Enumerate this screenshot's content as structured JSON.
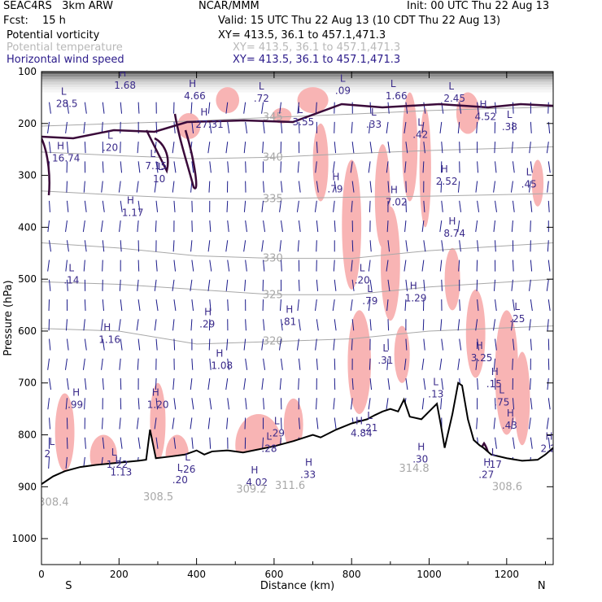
{
  "header": {
    "model": "SEAC4RS   3km ARW",
    "org": "NCAR/MMM",
    "init": "Init: 00 UTC Thu 22 Aug 13",
    "fcst_label": "Fcst:",
    "fcst_value": "15 h",
    "valid": "Valid: 15 UTC Thu 22 Aug 13 (10 CDT Thu 22 Aug 13)"
  },
  "fields": [
    {
      "name": "Potential vorticity",
      "xy": "XY= 413.5, 36.1 to 457.1,471.3",
      "color": "#2a0a4a"
    },
    {
      "name": "Potential temperature",
      "xy": "XY= 413.5, 36.1 to 457.1,471.3",
      "color": "#b0b0b0"
    },
    {
      "name": "Horizontal wind speed",
      "xy": "XY= 413.5, 36.1 to 457.1,471.3",
      "color": "#2a1a8a"
    }
  ],
  "colors": {
    "pv_contour": "#3a0a3a",
    "theta": "#a8a8a8",
    "wind_label": "#3a2a8a",
    "vectors": "#1a1a8a",
    "shading": "#f8b4b4",
    "terrain": "#000000"
  },
  "chart_data": {
    "type": "cross-section",
    "xlabel": "Distance (km)",
    "ylabel": "Pressure (hPa)",
    "xlim": [
      0,
      1320
    ],
    "ylim": [
      1050,
      100
    ],
    "xticks": [
      "0",
      "200",
      "400",
      "600",
      "800",
      "1000",
      "1200"
    ],
    "yticks": [
      "100",
      "200",
      "300",
      "400",
      "500",
      "600",
      "700",
      "800",
      "900",
      "1000"
    ],
    "end_labels": {
      "left": "S",
      "right": "N"
    },
    "terrain_surface": [
      [
        0,
        895
      ],
      [
        30,
        880
      ],
      [
        60,
        870
      ],
      [
        100,
        862
      ],
      [
        140,
        858
      ],
      [
        180,
        855
      ],
      [
        220,
        852
      ],
      [
        250,
        850
      ],
      [
        270,
        848
      ],
      [
        280,
        790
      ],
      [
        295,
        845
      ],
      [
        330,
        842
      ],
      [
        370,
        838
      ],
      [
        400,
        830
      ],
      [
        420,
        838
      ],
      [
        440,
        832
      ],
      [
        480,
        830
      ],
      [
        520,
        834
      ],
      [
        560,
        828
      ],
      [
        600,
        822
      ],
      [
        650,
        812
      ],
      [
        700,
        800
      ],
      [
        720,
        805
      ],
      [
        760,
        790
      ],
      [
        800,
        778
      ],
      [
        840,
        770
      ],
      [
        860,
        762
      ],
      [
        880,
        755
      ],
      [
        900,
        750
      ],
      [
        920,
        755
      ],
      [
        935,
        732
      ],
      [
        950,
        765
      ],
      [
        980,
        770
      ],
      [
        1000,
        755
      ],
      [
        1020,
        740
      ],
      [
        1030,
        780
      ],
      [
        1040,
        825
      ],
      [
        1060,
        760
      ],
      [
        1075,
        700
      ],
      [
        1085,
        705
      ],
      [
        1100,
        770
      ],
      [
        1115,
        810
      ],
      [
        1130,
        820
      ],
      [
        1140,
        825
      ],
      [
        1160,
        838
      ],
      [
        1200,
        845
      ],
      [
        1240,
        850
      ],
      [
        1280,
        848
      ],
      [
        1300,
        838
      ],
      [
        1320,
        825
      ]
    ],
    "theta_lines": [
      {
        "label": "345",
        "points": [
          [
            0,
            205
          ],
          [
            200,
            200
          ],
          [
            400,
            195
          ],
          [
            600,
            188
          ],
          [
            800,
            182
          ],
          [
            1000,
            175
          ],
          [
            1320,
            168
          ]
        ]
      },
      {
        "label": "340",
        "points": [
          [
            0,
            255
          ],
          [
            200,
            262
          ],
          [
            400,
            268
          ],
          [
            600,
            265
          ],
          [
            800,
            258
          ],
          [
            1000,
            252
          ],
          [
            1320,
            245
          ]
        ]
      },
      {
        "label": "335",
        "points": [
          [
            0,
            330
          ],
          [
            200,
            338
          ],
          [
            400,
            345
          ],
          [
            600,
            345
          ],
          [
            800,
            342
          ],
          [
            1000,
            340
          ],
          [
            1320,
            335
          ]
        ]
      },
      {
        "label": "330",
        "points": [
          [
            0,
            430
          ],
          [
            200,
            440
          ],
          [
            400,
            455
          ],
          [
            600,
            460
          ],
          [
            800,
            460
          ],
          [
            1000,
            445
          ],
          [
            1320,
            430
          ]
        ]
      },
      {
        "label": "325",
        "points": [
          [
            0,
            505
          ],
          [
            200,
            510
          ],
          [
            400,
            520
          ],
          [
            600,
            530
          ],
          [
            800,
            530
          ],
          [
            1000,
            515
          ],
          [
            1320,
            500
          ]
        ]
      },
      {
        "label": "320",
        "points": [
          [
            0,
            595
          ],
          [
            200,
            600
          ],
          [
            400,
            625
          ],
          [
            600,
            620
          ],
          [
            800,
            615
          ],
          [
            1000,
            600
          ],
          [
            1320,
            590
          ]
        ]
      }
    ],
    "wind_labels": [
      {
        "type": "L",
        "value": "28.5",
        "x": 50,
        "p": 165
      },
      {
        "type": "H",
        "value": "1.68",
        "x": 200,
        "p": 130
      },
      {
        "type": "H",
        "value": "4.66",
        "x": 380,
        "p": 150
      },
      {
        "type": "H",
        "value": "27.31",
        "x": 410,
        "p": 205
      },
      {
        "type": "L",
        "value": ".72",
        "x": 560,
        "p": 155
      },
      {
        "type": "L",
        "value": ".09",
        "x": 770,
        "p": 140
      },
      {
        "type": "L",
        "value": "1.66",
        "x": 900,
        "p": 150
      },
      {
        "type": "L",
        "value": "2.45",
        "x": 1050,
        "p": 155
      },
      {
        "type": "H",
        "value": "4.52",
        "x": 1130,
        "p": 190
      },
      {
        "type": "L",
        "value": ".38",
        "x": 1200,
        "p": 210
      },
      {
        "type": "L",
        "value": "3.55",
        "x": 660,
        "p": 200
      },
      {
        "type": "L",
        "value": ".33",
        "x": 850,
        "p": 205
      },
      {
        "type": "L",
        "value": ".42",
        "x": 970,
        "p": 225
      },
      {
        "type": "H",
        "value": "16.74",
        "x": 40,
        "p": 270
      },
      {
        "type": "L",
        "value": ".20",
        "x": 170,
        "p": 250
      },
      {
        "type": "L",
        "value": "7.15",
        "x": 280,
        "p": 285
      },
      {
        "type": "L",
        "value": "10",
        "x": 300,
        "p": 310
      },
      {
        "type": "H",
        "value": "2.52",
        "x": 1030,
        "p": 315
      },
      {
        "type": "L",
        "value": ".45",
        "x": 1250,
        "p": 320
      },
      {
        "type": "H",
        "value": ".79",
        "x": 750,
        "p": 330
      },
      {
        "type": "H",
        "value": "7.02",
        "x": 900,
        "p": 355
      },
      {
        "type": "H",
        "value": "1.17",
        "x": 220,
        "p": 375
      },
      {
        "type": "H",
        "value": "8.74",
        "x": 1050,
        "p": 415
      },
      {
        "type": "L",
        "value": ".14",
        "x": 70,
        "p": 505
      },
      {
        "type": "L",
        "value": ".20",
        "x": 820,
        "p": 505
      },
      {
        "type": "L",
        "value": ".79",
        "x": 840,
        "p": 545
      },
      {
        "type": "H",
        "value": "1.29",
        "x": 950,
        "p": 540
      },
      {
        "type": "H",
        "value": ".81",
        "x": 630,
        "p": 585
      },
      {
        "type": "H",
        "value": ".29",
        "x": 420,
        "p": 590
      },
      {
        "type": "L",
        "value": ".25",
        "x": 1220,
        "p": 580
      },
      {
        "type": "H",
        "value": "1.16",
        "x": 160,
        "p": 620
      },
      {
        "type": "H",
        "value": "3.25",
        "x": 1120,
        "p": 655
      },
      {
        "type": "H",
        "value": "1.08",
        "x": 450,
        "p": 670
      },
      {
        "type": "L",
        "value": ".31",
        "x": 880,
        "p": 660
      },
      {
        "type": "L",
        "value": ".13",
        "x": 1010,
        "p": 725
      },
      {
        "type": "H",
        "value": ".15",
        "x": 1160,
        "p": 705
      },
      {
        "type": "L",
        "value": ".75",
        "x": 1180,
        "p": 740
      },
      {
        "type": "H",
        "value": ".99",
        "x": 80,
        "p": 745
      },
      {
        "type": "H",
        "value": "1.20",
        "x": 285,
        "p": 745
      },
      {
        "type": "L",
        "value": ".29",
        "x": 600,
        "p": 800
      },
      {
        "type": "H",
        "value": ".43",
        "x": 1200,
        "p": 785
      },
      {
        "type": "H",
        "value": "4.84",
        "x": 810,
        "p": 800
      },
      {
        "type": "L",
        "value": ".21",
        "x": 840,
        "p": 790
      },
      {
        "type": "L",
        "value": ".28",
        "x": 580,
        "p": 830
      },
      {
        "type": "H",
        "value": "2.2",
        "x": 1300,
        "p": 830
      },
      {
        "type": "L",
        "value": "2",
        "x": 20,
        "p": 840
      },
      {
        "type": "L",
        "value": "1.22",
        "x": 180,
        "p": 860
      },
      {
        "type": "L",
        "value": "1.13",
        "x": 190,
        "p": 875
      },
      {
        "type": "L",
        "value": ".26",
        "x": 370,
        "p": 870
      },
      {
        "type": "L",
        "value": ".20",
        "x": 350,
        "p": 890
      },
      {
        "type": "H",
        "value": ".33",
        "x": 680,
        "p": 880
      },
      {
        "type": "H",
        "value": "4.02",
        "x": 540,
        "p": 895
      },
      {
        "type": "H",
        "value": ".30",
        "x": 970,
        "p": 850
      },
      {
        "type": "L",
        "value": ".17",
        "x": 1160,
        "p": 860
      },
      {
        "type": "H",
        "value": ".27",
        "x": 1140,
        "p": 880
      }
    ],
    "theta_surface_labels": [
      {
        "value": "308.4",
        "x": 30,
        "p": 930
      },
      {
        "value": "308.5",
        "x": 300,
        "p": 920
      },
      {
        "value": "309.2",
        "x": 540,
        "p": 905
      },
      {
        "value": "311.6",
        "x": 640,
        "p": 898
      },
      {
        "value": "314.8",
        "x": 960,
        "p": 865
      },
      {
        "value": "308.6",
        "x": 1200,
        "p": 900
      }
    ]
  }
}
